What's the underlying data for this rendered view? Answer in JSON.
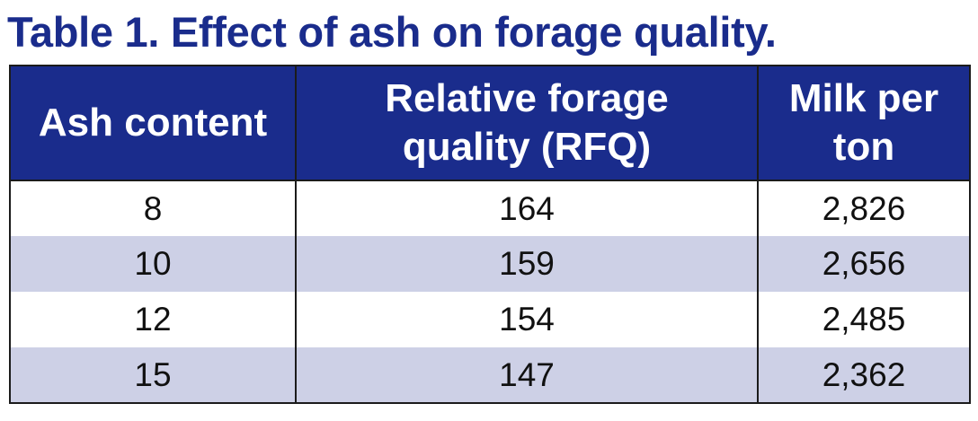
{
  "title": "Table 1. Effect of ash on forage quality.",
  "table": {
    "headers": [
      {
        "line1": "Ash content",
        "line2": ""
      },
      {
        "line1": "Relative forage",
        "line2": "quality (RFQ)"
      },
      {
        "line1": "Milk per",
        "line2": "ton"
      }
    ],
    "rows": [
      [
        "8",
        "164",
        "2,826"
      ],
      [
        "10",
        "159",
        "2,656"
      ],
      [
        "12",
        "154",
        "2,485"
      ],
      [
        "15",
        "147",
        "2,362"
      ]
    ]
  },
  "colors": {
    "header_bg": "#1a2c8c",
    "title_text": "#1a2c8c",
    "band_row": "#cdd0e6"
  }
}
